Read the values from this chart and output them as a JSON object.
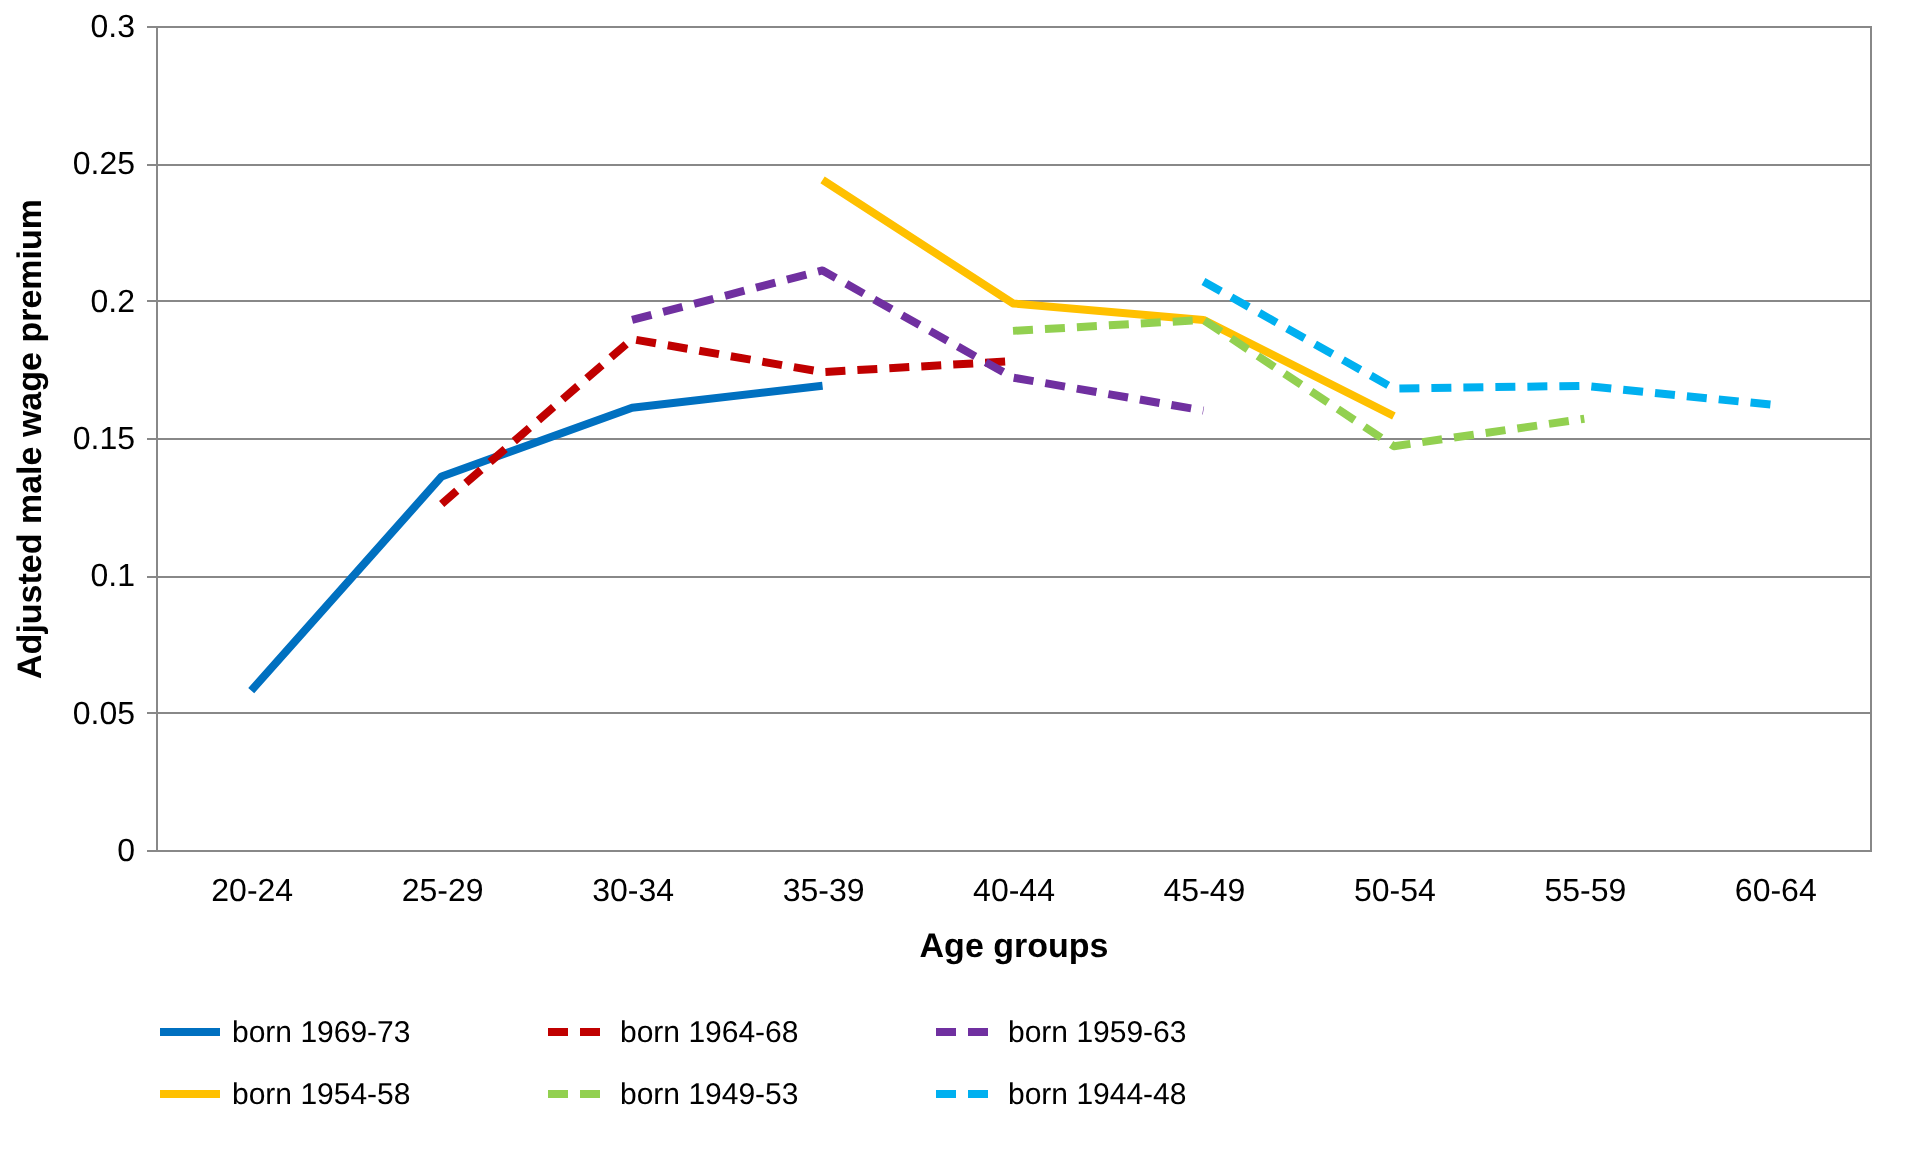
{
  "chart_data": {
    "type": "line",
    "xlabel": "Age groups",
    "ylabel": "Adjusted male wage premium",
    "categories": [
      "20-24",
      "25-29",
      "30-34",
      "35-39",
      "40-44",
      "45-49",
      "50-54",
      "55-59",
      "60-64"
    ],
    "ylim": [
      0,
      0.3
    ],
    "yticks": [
      0,
      0.05,
      0.1,
      0.15,
      0.2,
      0.25,
      0.3
    ],
    "grid": "y",
    "legend": "bottom",
    "marker": "none",
    "series": [
      {
        "name": "born 1969-73",
        "color": "#0070c0",
        "line_style": "solid",
        "values": [
          0.058,
          0.136,
          0.161,
          0.169,
          null,
          null,
          null,
          null,
          null
        ]
      },
      {
        "name": "born 1964-68",
        "color": "#c00000",
        "line_style": "dashed",
        "values": [
          null,
          0.126,
          0.186,
          0.174,
          0.178,
          null,
          null,
          null,
          null
        ]
      },
      {
        "name": "born 1959-63",
        "color": "#7030a0",
        "line_style": "dashed",
        "values": [
          null,
          null,
          0.193,
          0.211,
          0.172,
          0.16,
          null,
          null,
          null
        ]
      },
      {
        "name": "born 1954-58",
        "color": "#ffc000",
        "line_style": "solid",
        "values": [
          null,
          null,
          null,
          0.244,
          0.199,
          0.193,
          0.158,
          null,
          null
        ]
      },
      {
        "name": "born 1949-53",
        "color": "#92d050",
        "line_style": "dashed",
        "values": [
          null,
          null,
          null,
          null,
          0.189,
          0.193,
          0.147,
          0.157,
          null
        ]
      },
      {
        "name": "born 1944-48",
        "color": "#00b0f0",
        "line_style": "dashed",
        "values": [
          null,
          null,
          null,
          null,
          null,
          0.207,
          0.168,
          0.169,
          0.162
        ]
      }
    ]
  }
}
